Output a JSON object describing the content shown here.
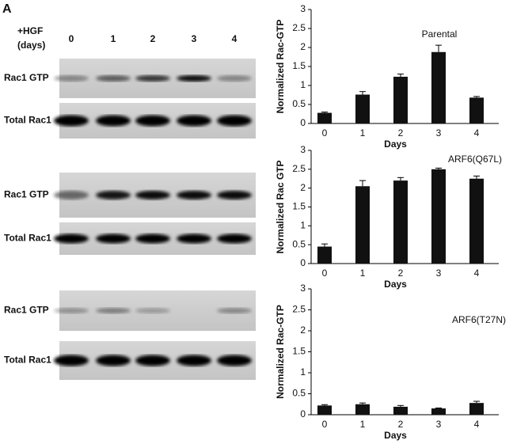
{
  "panel_label": "A",
  "blots": {
    "treatment_label": [
      "+HGF",
      "(days)"
    ],
    "lanes": [
      "0",
      "1",
      "2",
      "3",
      "4"
    ],
    "rows": [
      "Rac1 GTP",
      "Total Rac1",
      "Rac1 GTP",
      "Total Rac1",
      "Rac1 GTP",
      "Total Rac1"
    ]
  },
  "chart_data": [
    {
      "type": "bar",
      "title": "Parental",
      "ylabel": "Normalized Rac-GTP",
      "xlabel": "Days",
      "categories": [
        "0",
        "1",
        "2",
        "3",
        "4"
      ],
      "values": [
        0.28,
        0.76,
        1.23,
        1.88,
        0.68
      ],
      "errors": [
        0.02,
        0.08,
        0.07,
        0.18,
        0.03
      ],
      "color": "#111111",
      "ylim": [
        0,
        3
      ],
      "yticks": [
        0,
        0.5,
        1,
        1.5,
        2,
        2.5,
        3
      ],
      "grid": false
    },
    {
      "type": "bar",
      "title": "ARF6(Q67L)",
      "ylabel": "Normalized Rac GTP",
      "xlabel": "Days",
      "categories": [
        "0",
        "1",
        "2",
        "3",
        "4"
      ],
      "values": [
        0.45,
        2.05,
        2.2,
        2.5,
        2.25
      ],
      "errors": [
        0.07,
        0.15,
        0.08,
        0.03,
        0.07
      ],
      "color": "#111111",
      "ylim": [
        0,
        3
      ],
      "yticks": [
        0,
        0.5,
        1,
        1.5,
        2,
        2.5,
        3
      ],
      "grid": false
    },
    {
      "type": "bar",
      "title": "ARF6(T27N)",
      "ylabel": "Normalized Rac-GTP",
      "xlabel": "Days",
      "categories": [
        "0",
        "1",
        "2",
        "3",
        "4"
      ],
      "values": [
        0.22,
        0.25,
        0.19,
        0.15,
        0.28
      ],
      "errors": [
        0.02,
        0.03,
        0.03,
        0.01,
        0.04
      ],
      "color": "#111111",
      "ylim": [
        0,
        3
      ],
      "yticks": [
        0,
        0.5,
        1,
        1.5,
        2,
        2.5,
        3
      ],
      "grid": false
    }
  ]
}
